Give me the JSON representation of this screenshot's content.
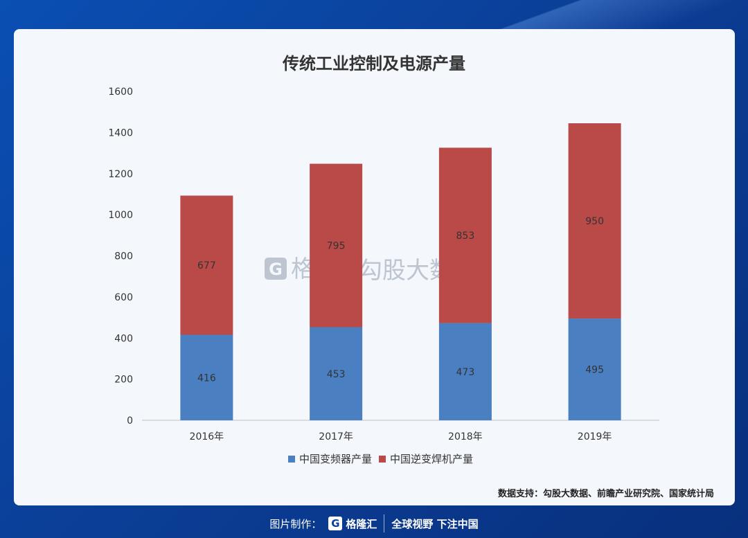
{
  "chart_data": {
    "type": "bar",
    "stacked": true,
    "title": "传统工业控制及电源产量",
    "categories": [
      "2016年",
      "2017年",
      "2018年",
      "2019年"
    ],
    "series": [
      {
        "name": "中国变频器产量",
        "values": [
          416,
          453,
          473,
          495
        ],
        "color": "#4a7fc1"
      },
      {
        "name": "中国逆变焊机产量",
        "values": [
          677,
          795,
          853,
          950
        ],
        "color": "#b94a48"
      }
    ],
    "ylim": [
      0,
      1600
    ],
    "yticks": [
      0,
      200,
      400,
      600,
      800,
      1000,
      1200,
      1400,
      1600
    ],
    "legend_position": "bottom",
    "grid": false
  },
  "watermark": {
    "brand": "格隆汇",
    "text": "勾股大数据",
    "logo_letter": "G"
  },
  "source_text": "数据支持：勾股大数据、前瞻产业研究院、国家统计局",
  "footer": {
    "label": "图片制作：",
    "brand": "格隆汇",
    "logo_letter": "G",
    "slogan": "全球视野 下注中国"
  }
}
